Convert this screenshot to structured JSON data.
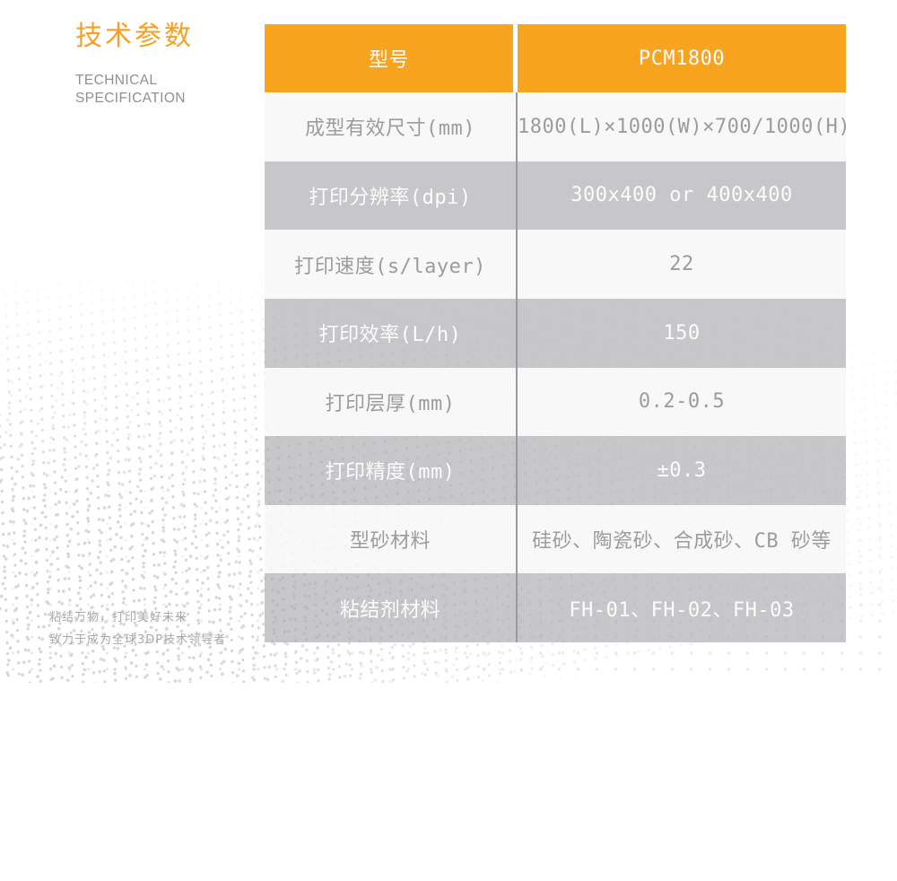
{
  "header": {
    "title_cn": "技术参数",
    "subtitle_line1": "TECHNICAL",
    "subtitle_line2": "SPECIFICATION"
  },
  "colors": {
    "accent_orange": "#F8A41E",
    "row_gray": "#C5C5C9",
    "row_light": "#F7F7F8",
    "text_gray": "#9C9C9F",
    "divider_gray": "#9A9A9E"
  },
  "table": {
    "header": {
      "label": "型号",
      "value": "PCM1800"
    },
    "rows": [
      {
        "label": "成型有效尺寸(mm)",
        "value": "1800(L)×1000(W)×700/1000(H)",
        "shade": "light"
      },
      {
        "label": "打印分辨率(dpi)",
        "value": "300x400 or 400x400",
        "shade": "dark"
      },
      {
        "label": "打印速度(s/layer)",
        "value": "22",
        "shade": "light"
      },
      {
        "label": "打印效率(L/h)",
        "value": "150",
        "shade": "dark"
      },
      {
        "label": "打印层厚(mm)",
        "value": "0.2-0.5",
        "shade": "light"
      },
      {
        "label": "打印精度(mm)",
        "value": "±0.3",
        "shade": "dark"
      },
      {
        "label": "型砂材料",
        "value": "硅砂、陶瓷砂、合成砂、CB 砂等",
        "shade": "light"
      },
      {
        "label": "粘结剂材料",
        "value": "FH-01、FH-02、FH-03",
        "shade": "dark"
      }
    ]
  },
  "footer": {
    "slogan_line1": "粘结万物，打印美好未来",
    "slogan_line2": "致力于成为全球3DP技术领导者"
  }
}
